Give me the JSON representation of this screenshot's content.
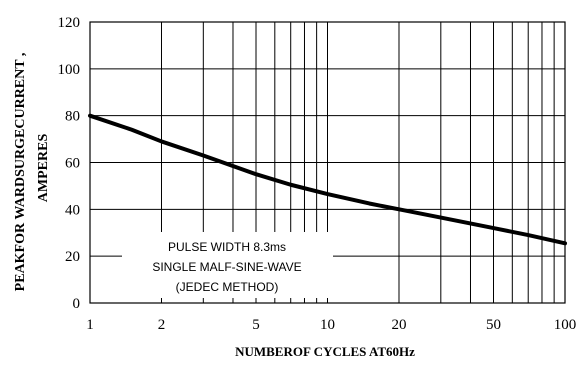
{
  "chart_data": {
    "type": "line",
    "xscale": "log",
    "xlim": [
      1,
      100
    ],
    "ylim": [
      0,
      120
    ],
    "xticks": [
      1,
      2,
      5,
      10,
      20,
      50,
      100
    ],
    "xtick_labels": [
      "1",
      "2",
      "5",
      "10",
      "20",
      "50",
      "100"
    ],
    "yticks": [
      0,
      20,
      40,
      60,
      80,
      100,
      120
    ],
    "ytick_labels": [
      "0",
      "20",
      "40",
      "60",
      "80",
      "100",
      "120"
    ],
    "grid": true,
    "ylabel_line1": "PEAKFOR WARDSURGECURRENT ,",
    "ylabel_line2": "AMPERES",
    "xlabel": "NUMBEROF CYCLES  AT60Hz",
    "annotation": [
      "PULSE WIDTH 8.3ms",
      "SINGLE MALF-SINE-WAVE",
      "(JEDEC METHOD)"
    ],
    "series": [
      {
        "x": [
          1,
          1.5,
          2,
          3,
          5,
          7,
          10,
          15,
          20,
          30,
          50,
          70,
          100
        ],
        "y": [
          80,
          74,
          69,
          63,
          55,
          50.5,
          46.5,
          42.5,
          40,
          36.5,
          32,
          29,
          25.5
        ]
      }
    ]
  }
}
